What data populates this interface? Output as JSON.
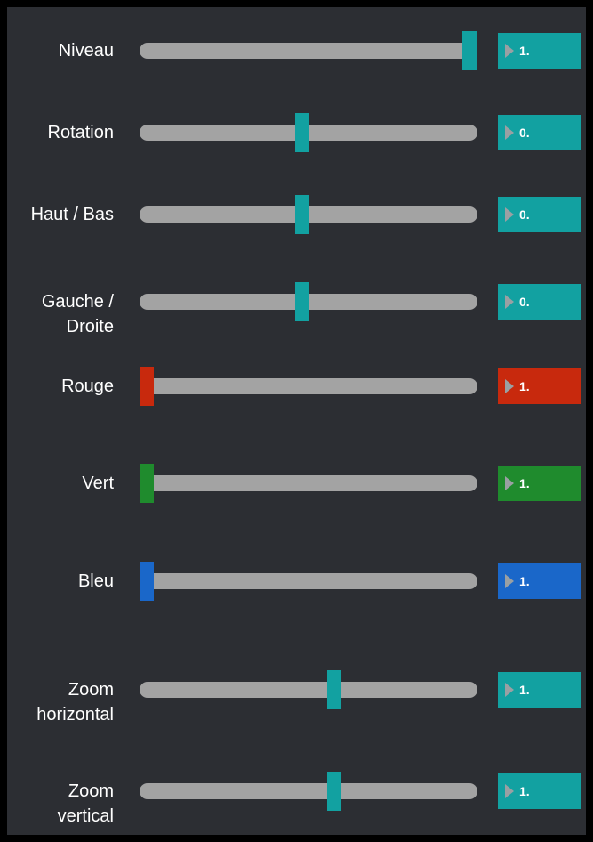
{
  "rows": [
    {
      "label": "Niveau",
      "value": "1."
    },
    {
      "label": "Rotation",
      "value": "0."
    },
    {
      "label": "Haut / Bas",
      "value": "0."
    },
    {
      "label": "Gauche / Droite",
      "value": "0."
    },
    {
      "label": "Rouge",
      "value": "1."
    },
    {
      "label": "Vert",
      "value": "1."
    },
    {
      "label": "Bleu",
      "value": "1."
    },
    {
      "label": "Zoom horizontal",
      "value": "1."
    },
    {
      "label": "Zoom vertical",
      "value": "1."
    }
  ]
}
